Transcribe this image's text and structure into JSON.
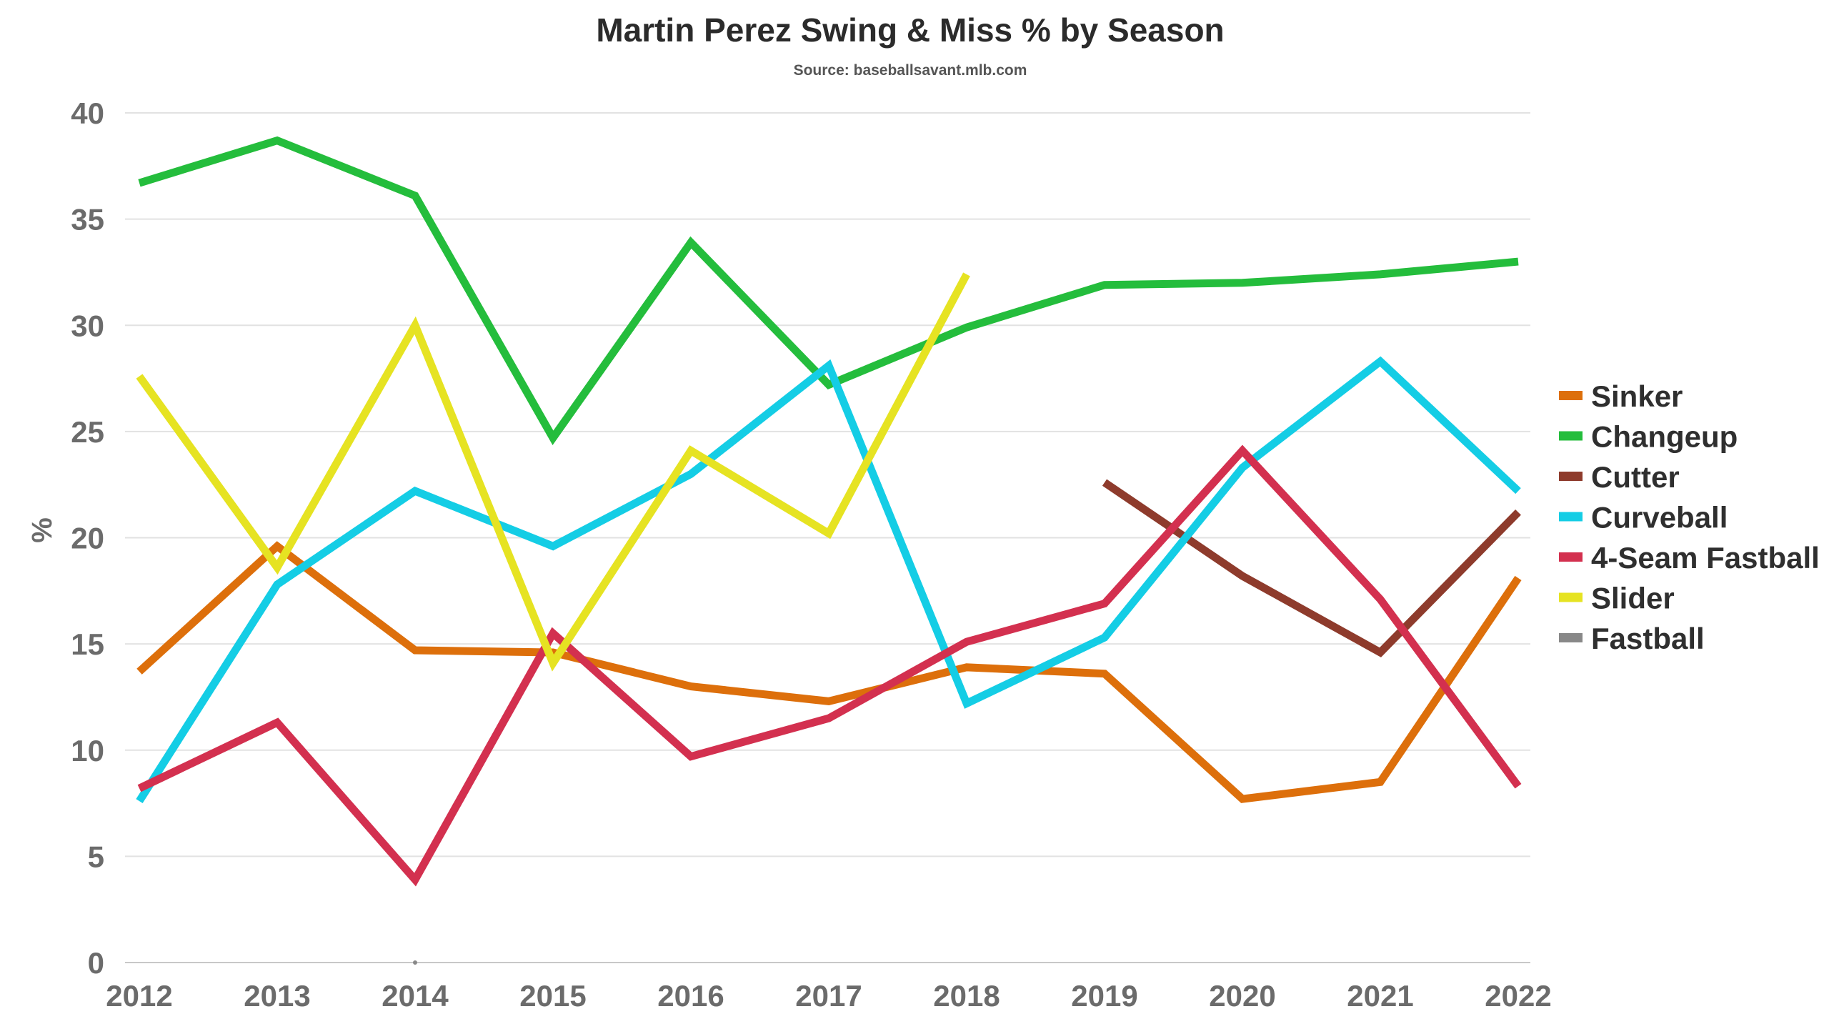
{
  "chart_data": {
    "type": "line",
    "title": "Martin Perez Swing & Miss % by Season",
    "subtitle": "Source: baseballsavant.mlb.com",
    "xlabel": "",
    "ylabel": "%",
    "x": [
      "2012",
      "2013",
      "2014",
      "2015",
      "2016",
      "2017",
      "2018",
      "2019",
      "2020",
      "2021",
      "2022"
    ],
    "ylim": [
      0,
      40
    ],
    "yticks": [
      0,
      5,
      10,
      15,
      20,
      25,
      30,
      35,
      40
    ],
    "grid": true,
    "legend_position": "right",
    "series": [
      {
        "name": "Sinker",
        "color": "#dd6f0b",
        "values": [
          13.7,
          19.6,
          14.7,
          14.6,
          13.0,
          12.3,
          13.9,
          13.6,
          7.7,
          8.5,
          18.1
        ]
      },
      {
        "name": "Changeup",
        "color": "#24bd3c",
        "values": [
          36.7,
          38.7,
          36.1,
          24.7,
          33.9,
          27.2,
          29.9,
          31.9,
          32.0,
          32.4,
          33.0
        ]
      },
      {
        "name": "Cutter",
        "color": "#8e3b2c",
        "values": [
          null,
          null,
          null,
          null,
          null,
          null,
          null,
          22.6,
          18.2,
          14.6,
          21.2
        ]
      },
      {
        "name": "Curveball",
        "color": "#14cde5",
        "values": [
          7.6,
          17.8,
          22.2,
          19.6,
          23.0,
          28.1,
          12.2,
          15.3,
          23.3,
          28.3,
          22.2
        ]
      },
      {
        "name": "4-Seam Fastball",
        "color": "#d3304f",
        "values": [
          8.2,
          11.3,
          3.9,
          15.5,
          9.7,
          11.5,
          15.1,
          16.9,
          24.1,
          17.1,
          8.3
        ]
      },
      {
        "name": "Slider",
        "color": "#e6e322",
        "values": [
          27.6,
          18.6,
          30.0,
          14.1,
          24.1,
          20.2,
          32.4,
          null,
          null,
          null,
          null
        ]
      },
      {
        "name": "Fastball",
        "color": "#888888",
        "values": [
          null,
          null,
          0.0,
          null,
          null,
          null,
          null,
          null,
          null,
          null,
          null
        ]
      }
    ]
  }
}
